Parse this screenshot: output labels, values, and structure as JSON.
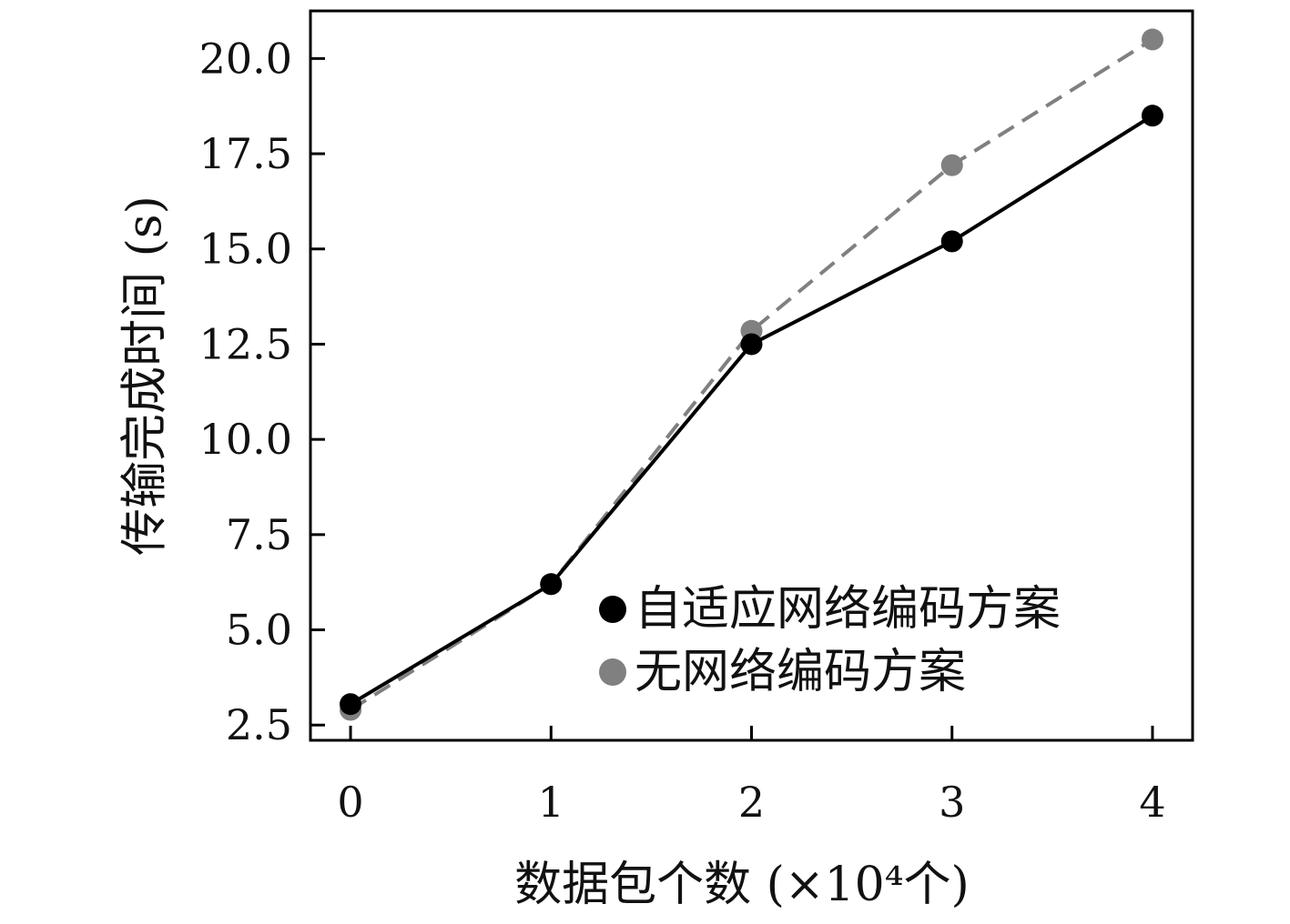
{
  "chart_data": {
    "type": "line",
    "xlabel": "数据包个数 (×10⁴个)",
    "ylabel": "传输完成时间 (s)",
    "x": [
      0,
      1,
      2,
      3,
      4
    ],
    "xticks": [
      "0",
      "1",
      "2",
      "3",
      "4"
    ],
    "xlim": [
      -0.2,
      4.2
    ],
    "yticks": [
      "2.5",
      "5.0",
      "7.5",
      "10.0",
      "12.5",
      "15.0",
      "17.5",
      "20.0"
    ],
    "ylim": [
      2.1,
      21.25
    ],
    "grid": false,
    "legend_position": "lower-right",
    "series": [
      {
        "name": "自适应网络编码方案",
        "values": [
          3.05,
          6.2,
          12.5,
          15.2,
          18.5
        ],
        "color": "#000000",
        "line_style": "solid",
        "marker": "circle"
      },
      {
        "name": "无网络编码方案",
        "values": [
          2.9,
          6.2,
          12.85,
          17.2,
          20.5
        ],
        "color": "#808080",
        "line_style": "dashed",
        "marker": "circle"
      }
    ]
  }
}
